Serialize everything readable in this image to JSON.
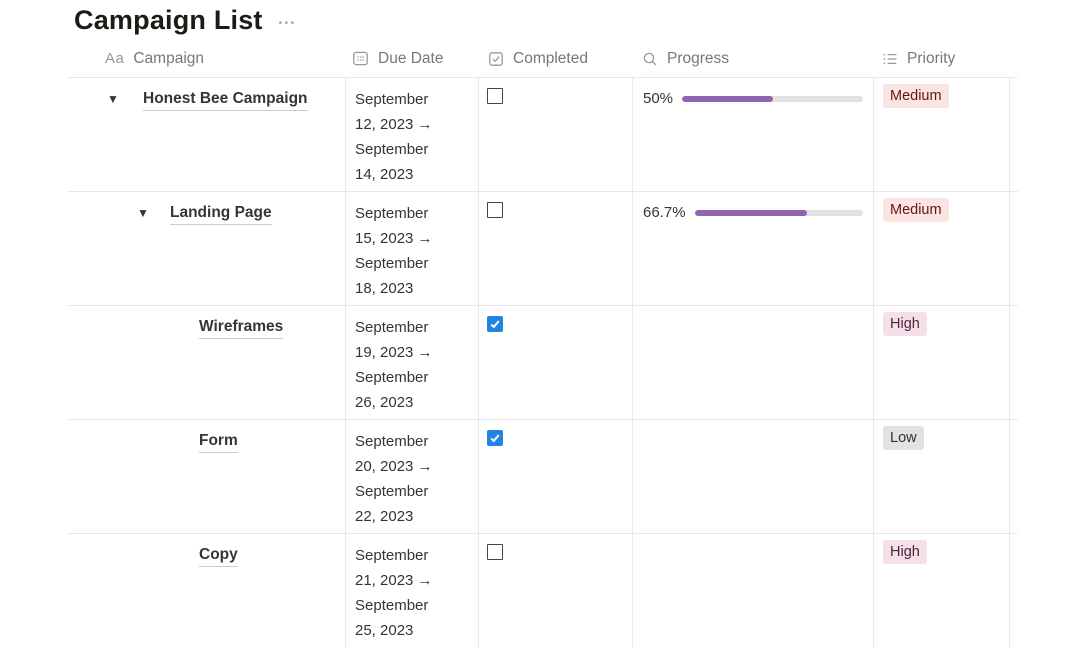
{
  "page": {
    "title": "Campaign List"
  },
  "icons": {
    "title_glyph": "Aa",
    "toggle_down": "▼",
    "ellipsis": "•••"
  },
  "colors": {
    "progress_fill": "#9065B0",
    "progress_track": "#E3E2E0",
    "checkbox_checked": "#2383E2",
    "row_divider": "#E9E9E7",
    "header_text": "#787774",
    "body_text": "#37352F",
    "badge_red_bg": "#FBE4E1",
    "badge_red_text": "#5D1715",
    "badge_pink_bg": "#F5E0E9",
    "badge_pink_text": "#4C2337",
    "badge_gray_bg": "#E3E2E0",
    "badge_gray_text": "#32302C"
  },
  "table": {
    "columns": [
      {
        "label": "Campaign",
        "icon": "title-icon"
      },
      {
        "label": "Due Date",
        "icon": "calendar-icon"
      },
      {
        "label": "Completed",
        "icon": "checkbox-icon"
      },
      {
        "label": "Progress",
        "icon": "magnifier-icon"
      },
      {
        "label": "Priority",
        "icon": "list-icon"
      }
    ],
    "rows": [
      {
        "campaign": "Honest Bee Campaign",
        "indent": 0,
        "has_toggle": true,
        "due_date": "September 12, 2023 → September 14, 2023",
        "completed": false,
        "progress_label": "50%",
        "progress_percent": 50,
        "priority": "Medium",
        "priority_color": "red"
      },
      {
        "campaign": "Landing Page",
        "indent": 1,
        "has_toggle": true,
        "due_date": "September 15, 2023 → September 18, 2023",
        "completed": false,
        "progress_label": "66.7%",
        "progress_percent": 66.7,
        "priority": "Medium",
        "priority_color": "red"
      },
      {
        "campaign": "Wireframes",
        "indent": 2,
        "has_toggle": false,
        "due_date": "September 19, 2023 → September 26, 2023",
        "completed": true,
        "progress_label": "",
        "progress_percent": null,
        "priority": "High",
        "priority_color": "pink"
      },
      {
        "campaign": "Form",
        "indent": 2,
        "has_toggle": false,
        "due_date": "September 20, 2023 → September 22, 2023",
        "completed": true,
        "progress_label": "",
        "progress_percent": null,
        "priority": "Low",
        "priority_color": "gray"
      },
      {
        "campaign": "Copy",
        "indent": 2,
        "has_toggle": false,
        "due_date": "September 21, 2023 → September 25, 2023",
        "completed": false,
        "progress_label": "",
        "progress_percent": null,
        "priority": "High",
        "priority_color": "pink"
      }
    ]
  }
}
